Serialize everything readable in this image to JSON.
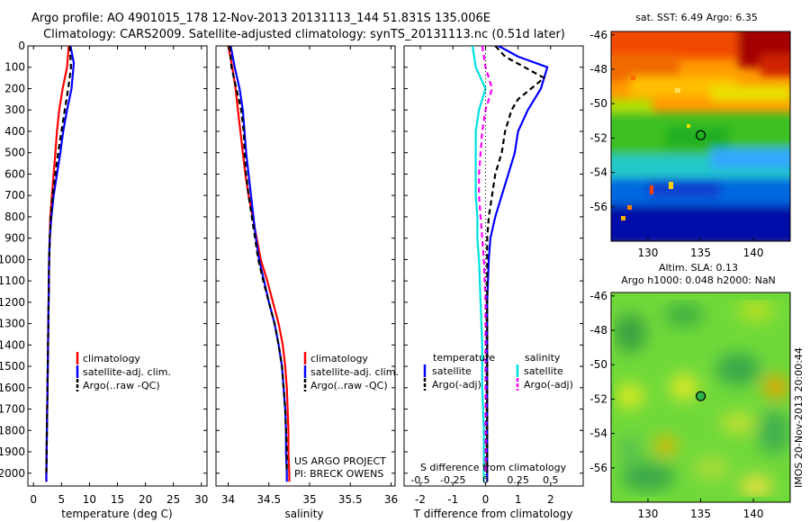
{
  "header": {
    "title_line1": "Argo profile: AO 4901015_178 12-Nov-2013 20131113_144 51.831S 135.006E",
    "title_line2": "Climatology: CARS2009. Satellite-adjusted climatology: synTS_20131113.nc (0.51d later)"
  },
  "credit": {
    "line1": "US ARGO PROJECT",
    "line2": "PI: BRECK OWENS",
    "imos_stamp": "IMOS 20-Nov-2013 20:00:44"
  },
  "colors": {
    "climatology": "#ff0000",
    "satellite": "#0000ff",
    "argo": "#000000",
    "salinity_satellite": "#00e0e0",
    "salinity_argo": "#ff00ff"
  },
  "chart_data": [
    {
      "type": "line",
      "title": "",
      "xlabel": "temperature (deg C)",
      "ylabel": "",
      "xlim": [
        -1,
        31
      ],
      "ylim": [
        2060,
        0
      ],
      "xticks": [
        "0",
        "5",
        "10",
        "15",
        "20",
        "25",
        "30"
      ],
      "xtick_values": [
        0,
        5,
        10,
        15,
        20,
        25,
        30
      ],
      "yticks": [
        "0",
        "100",
        "200",
        "300",
        "400",
        "500",
        "600",
        "700",
        "800",
        "900",
        "1000",
        "1100",
        "1200",
        "1300",
        "1400",
        "1500",
        "1600",
        "1700",
        "1800",
        "1900",
        "2000"
      ],
      "ytick_values": [
        0,
        100,
        200,
        300,
        400,
        500,
        600,
        700,
        800,
        900,
        1000,
        1100,
        1200,
        1300,
        1400,
        1500,
        1600,
        1700,
        1800,
        1900,
        2000
      ],
      "legend": [
        "climatology",
        "satellite-adj. clim.",
        "Argo(..raw -QC)"
      ],
      "series": [
        {
          "name": "climatology",
          "color": "#ff0000",
          "dash": "none",
          "points": [
            [
              6.3,
              0
            ],
            [
              6.0,
              100
            ],
            [
              5.2,
              200
            ],
            [
              4.6,
              300
            ],
            [
              4.2,
              400
            ],
            [
              3.9,
              500
            ],
            [
              3.6,
              600
            ],
            [
              3.3,
              700
            ],
            [
              3.0,
              800
            ],
            [
              2.9,
              900
            ],
            [
              2.8,
              1000
            ],
            [
              2.7,
              1200
            ],
            [
              2.6,
              1400
            ],
            [
              2.5,
              1600
            ],
            [
              2.4,
              1800
            ],
            [
              2.3,
              2000
            ],
            [
              2.3,
              2040
            ]
          ]
        },
        {
          "name": "satellite-adj. clim.",
          "color": "#0000ff",
          "dash": "none",
          "points": [
            [
              6.6,
              0
            ],
            [
              7.2,
              80
            ],
            [
              6.8,
              200
            ],
            [
              6.0,
              300
            ],
            [
              5.3,
              400
            ],
            [
              4.8,
              500
            ],
            [
              4.2,
              600
            ],
            [
              3.6,
              700
            ],
            [
              3.2,
              800
            ],
            [
              2.9,
              900
            ],
            [
              2.8,
              1000
            ],
            [
              2.7,
              1200
            ],
            [
              2.6,
              1400
            ],
            [
              2.5,
              1600
            ],
            [
              2.4,
              1800
            ],
            [
              2.3,
              2000
            ],
            [
              2.3,
              2040
            ]
          ]
        },
        {
          "name": "Argo(..raw -QC)",
          "color": "#000000",
          "dash": "6,4",
          "points": [
            [
              6.5,
              0
            ],
            [
              6.7,
              100
            ],
            [
              6.2,
              200
            ],
            [
              5.6,
              300
            ],
            [
              5.0,
              400
            ],
            [
              4.4,
              500
            ],
            [
              3.9,
              600
            ],
            [
              3.4,
              700
            ],
            [
              3.1,
              800
            ],
            [
              2.9,
              900
            ],
            [
              2.8,
              1000
            ],
            [
              2.7,
              1200
            ],
            [
              2.6,
              1400
            ],
            [
              2.5,
              1600
            ],
            [
              2.4,
              1800
            ],
            [
              2.3,
              2000
            ]
          ]
        }
      ]
    },
    {
      "type": "line",
      "title": "",
      "xlabel": "salinity",
      "ylabel": "",
      "xlim": [
        33.85,
        36.05
      ],
      "ylim": [
        2060,
        0
      ],
      "xticks": [
        "34",
        "34.5",
        "35",
        "35.5",
        "36"
      ],
      "xtick_values": [
        34,
        34.5,
        35,
        35.5,
        36
      ],
      "legend": [
        "climatology",
        "satellite-adj. clim.",
        "Argo(..raw -QC)"
      ],
      "series": [
        {
          "name": "climatology",
          "color": "#ff0000",
          "dash": "none",
          "points": [
            [
              34.0,
              0
            ],
            [
              34.05,
              100
            ],
            [
              34.09,
              200
            ],
            [
              34.12,
              300
            ],
            [
              34.15,
              400
            ],
            [
              34.18,
              500
            ],
            [
              34.21,
              600
            ],
            [
              34.25,
              700
            ],
            [
              34.3,
              800
            ],
            [
              34.35,
              900
            ],
            [
              34.4,
              1000
            ],
            [
              34.48,
              1100
            ],
            [
              34.55,
              1200
            ],
            [
              34.62,
              1300
            ],
            [
              34.67,
              1400
            ],
            [
              34.7,
              1500
            ],
            [
              34.72,
              1600
            ],
            [
              34.73,
              1700
            ],
            [
              34.74,
              1800
            ],
            [
              34.74,
              1900
            ],
            [
              34.75,
              2000
            ],
            [
              34.75,
              2040
            ]
          ]
        },
        {
          "name": "satellite-adj. clim.",
          "color": "#0000ff",
          "dash": "none",
          "points": [
            [
              34.03,
              0
            ],
            [
              34.08,
              100
            ],
            [
              34.14,
              200
            ],
            [
              34.18,
              300
            ],
            [
              34.2,
              400
            ],
            [
              34.22,
              500
            ],
            [
              34.25,
              600
            ],
            [
              34.28,
              700
            ],
            [
              34.31,
              800
            ],
            [
              34.34,
              900
            ],
            [
              34.38,
              1000
            ],
            [
              34.44,
              1100
            ],
            [
              34.5,
              1200
            ],
            [
              34.57,
              1300
            ],
            [
              34.62,
              1400
            ],
            [
              34.66,
              1500
            ],
            [
              34.68,
              1600
            ],
            [
              34.7,
              1700
            ],
            [
              34.71,
              1800
            ],
            [
              34.71,
              1900
            ],
            [
              34.72,
              2000
            ],
            [
              34.72,
              2040
            ]
          ]
        },
        {
          "name": "Argo(..raw -QC)",
          "color": "#000000",
          "dash": "6,4",
          "points": [
            [
              34.02,
              0
            ],
            [
              34.04,
              100
            ],
            [
              34.1,
              200
            ],
            [
              34.16,
              300
            ],
            [
              34.19,
              400
            ],
            [
              34.2,
              500
            ],
            [
              34.22,
              600
            ],
            [
              34.25,
              700
            ],
            [
              34.29,
              800
            ],
            [
              34.33,
              900
            ],
            [
              34.37,
              1000
            ],
            [
              34.43,
              1100
            ],
            [
              34.5,
              1200
            ],
            [
              34.57,
              1300
            ],
            [
              34.62,
              1400
            ],
            [
              34.66,
              1500
            ],
            [
              34.68,
              1600
            ],
            [
              34.7,
              1700
            ],
            [
              34.71,
              1800
            ],
            [
              34.72,
              1900
            ],
            [
              34.72,
              2000
            ]
          ]
        }
      ]
    },
    {
      "type": "line",
      "title": "",
      "xlabel": "T difference from climatology",
      "xlabel_top": "S difference from climatology",
      "ylabel": "",
      "xlim": [
        -2.5,
        3
      ],
      "ylim": [
        2060,
        0
      ],
      "xticks": [
        "-2",
        "-1",
        "0",
        "1",
        "2"
      ],
      "xtick_values": [
        -2,
        -1,
        0,
        1,
        2
      ],
      "xticks_S": [
        "-0.5",
        "-0.25",
        "0",
        "0.25",
        "0.5"
      ],
      "xtick_values_S": [
        -0.5,
        -0.25,
        0,
        0.25,
        0.5
      ],
      "legend_headers": [
        "temperature",
        "salinity"
      ],
      "legend_temperature": [
        "satellite",
        "Argo(-adj)"
      ],
      "legend_salinity": [
        "satellite",
        "Argo(-adj)"
      ],
      "series": [
        {
          "name": "satellite",
          "color": "#0000ff",
          "dash": "none",
          "scale": "T",
          "points": [
            [
              0.4,
              0
            ],
            [
              1.0,
              50
            ],
            [
              1.9,
              100
            ],
            [
              1.7,
              200
            ],
            [
              1.3,
              300
            ],
            [
              1.0,
              400
            ],
            [
              0.9,
              500
            ],
            [
              0.7,
              600
            ],
            [
              0.5,
              700
            ],
            [
              0.3,
              800
            ],
            [
              0.15,
              900
            ],
            [
              0.1,
              1000
            ],
            [
              0.05,
              1200
            ],
            [
              0.05,
              1500
            ],
            [
              0.05,
              2000
            ],
            [
              0.05,
              2040
            ]
          ]
        },
        {
          "name": "Argo(-adj)",
          "color": "#000000",
          "dash": "6,4",
          "scale": "T",
          "points": [
            [
              0.3,
              0
            ],
            [
              0.6,
              50
            ],
            [
              1.2,
              100
            ],
            [
              1.8,
              150
            ],
            [
              1.0,
              250
            ],
            [
              0.8,
              300
            ],
            [
              0.6,
              400
            ],
            [
              0.5,
              500
            ],
            [
              0.3,
              600
            ],
            [
              0.2,
              700
            ],
            [
              0.1,
              800
            ],
            [
              0.05,
              900
            ],
            [
              0.05,
              1100
            ],
            [
              0.05,
              1500
            ],
            [
              0.05,
              2000
            ]
          ]
        },
        {
          "name": "satellite",
          "color": "#00e0e0",
          "dash": "none",
          "scale": "T",
          "points": [
            [
              -0.4,
              0
            ],
            [
              -0.3,
              100
            ],
            [
              0.0,
              200
            ],
            [
              -0.2,
              300
            ],
            [
              -0.3,
              400
            ],
            [
              -0.3,
              500
            ],
            [
              -0.3,
              600
            ],
            [
              -0.3,
              700
            ],
            [
              -0.25,
              800
            ],
            [
              -0.25,
              900
            ],
            [
              -0.2,
              1000
            ],
            [
              -0.15,
              1200
            ],
            [
              -0.1,
              1400
            ],
            [
              -0.1,
              1600
            ],
            [
              -0.05,
              1800
            ],
            [
              -0.05,
              2000
            ],
            [
              -0.05,
              2040
            ]
          ]
        },
        {
          "name": "Argo(-adj)",
          "color": "#ff00ff",
          "dash": "6,4",
          "scale": "T",
          "points": [
            [
              -0.1,
              0
            ],
            [
              0.0,
              100
            ],
            [
              0.2,
              200
            ],
            [
              0.0,
              300
            ],
            [
              -0.1,
              400
            ],
            [
              -0.15,
              500
            ],
            [
              -0.2,
              600
            ],
            [
              -0.2,
              700
            ],
            [
              -0.15,
              800
            ],
            [
              -0.1,
              900
            ],
            [
              -0.05,
              1000
            ],
            [
              0.0,
              1200
            ],
            [
              0.0,
              1500
            ],
            [
              0.0,
              2000
            ]
          ]
        },
        {
          "name": "zero",
          "color": "#000000",
          "dash": "1,3",
          "scale": "T",
          "points": [
            [
              0,
              0
            ],
            [
              0,
              2040
            ]
          ]
        }
      ]
    },
    {
      "type": "heatmap",
      "title": "sat. SST: 6.49  Argo: 6.35",
      "xlim": [
        126.5,
        143.5
      ],
      "ylim": [
        -58,
        -45.8
      ],
      "xticks": [
        "130",
        "135",
        "140"
      ],
      "xtick_values": [
        130,
        135,
        140
      ],
      "yticks": [
        "-46",
        "-48",
        "-50",
        "-52",
        "-54",
        "-56"
      ],
      "ytick_values": [
        -46,
        -48,
        -50,
        -52,
        -54,
        -56
      ],
      "marker": {
        "lon": 135.006,
        "lat": -51.831,
        "color": "#2cb34a"
      }
    },
    {
      "type": "heatmap",
      "title": "Altim. SLA: 0.13",
      "subtitle": "Argo h1000: 0.048  h2000: NaN",
      "xlim": [
        126.5,
        143.5
      ],
      "ylim": [
        -58,
        -45.8
      ],
      "xticks": [
        "130",
        "135",
        "140"
      ],
      "xtick_values": [
        130,
        135,
        140
      ],
      "yticks": [
        "-46",
        "-48",
        "-50",
        "-52",
        "-54",
        "-56"
      ],
      "ytick_values": [
        -46,
        -48,
        -50,
        -52,
        -54,
        -56
      ],
      "marker": {
        "lon": 135.006,
        "lat": -51.831,
        "color": "#2cb34a"
      }
    }
  ]
}
